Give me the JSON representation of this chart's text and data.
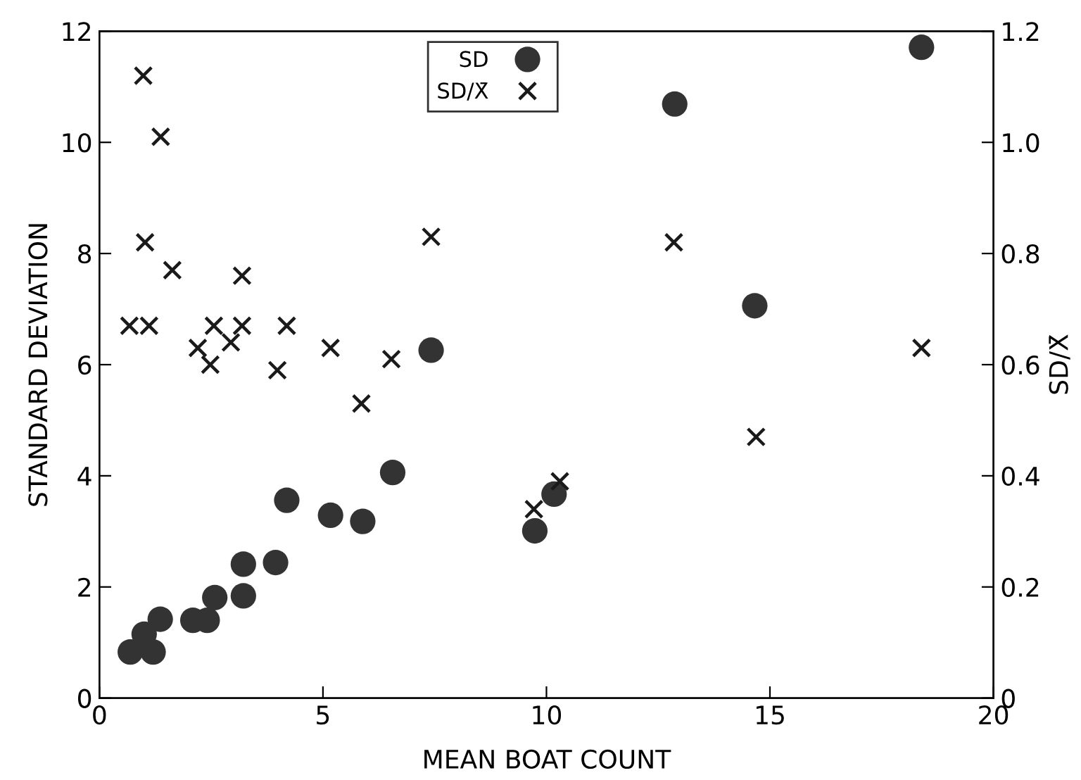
{
  "chart_data": {
    "type": "scatter",
    "xlabel": "MEAN BOAT COUNT",
    "ylabel": "STANDARD DEVIATION",
    "y2label": "SD/X̄",
    "xlim": [
      0,
      20
    ],
    "xticks": [
      0,
      5,
      10,
      15,
      20
    ],
    "ylim": [
      0,
      12
    ],
    "yticks": [
      0,
      2,
      4,
      6,
      8,
      10,
      12
    ],
    "y2lim": [
      0,
      1.2
    ],
    "y2ticks": [
      0,
      0.2,
      0.4,
      0.6,
      0.8,
      {
        "value": 1.0,
        "label": "1.0"
      },
      1.2
    ],
    "grid": false,
    "legend": "top",
    "series": [
      {
        "name": "SD",
        "marker": "circle",
        "color": "#333333",
        "x": [
          0.69,
          1.0,
          1.2,
          1.36,
          2.09,
          2.41,
          2.58,
          3.22,
          3.22,
          3.94,
          4.19,
          5.17,
          5.89,
          6.56,
          7.42,
          9.74,
          10.17,
          12.87,
          14.66,
          18.39
        ],
        "values": [
          0.83,
          1.15,
          0.83,
          1.42,
          1.4,
          1.4,
          1.81,
          2.41,
          1.84,
          2.44,
          3.56,
          3.29,
          3.18,
          4.06,
          6.26,
          3.01,
          3.67,
          10.69,
          7.06,
          11.71
        ]
      },
      {
        "name": "SD/X̄",
        "marker": "cross",
        "axis": "y2",
        "color": "#1a1a1a",
        "x": [
          0.98,
          1.37,
          1.02,
          1.63,
          3.19,
          0.67,
          1.11,
          2.56,
          3.19,
          4.19,
          2.2,
          2.48,
          2.94,
          3.98,
          5.17,
          5.86,
          6.53,
          7.42,
          9.72,
          10.3,
          12.85,
          14.69,
          18.39
        ],
        "values": [
          1.12,
          1.01,
          0.82,
          0.77,
          0.76,
          0.67,
          0.67,
          0.67,
          0.67,
          0.67,
          0.63,
          0.6,
          0.64,
          0.59,
          0.63,
          0.53,
          0.61,
          0.83,
          0.34,
          0.39,
          0.82,
          0.47,
          0.63
        ]
      }
    ]
  }
}
